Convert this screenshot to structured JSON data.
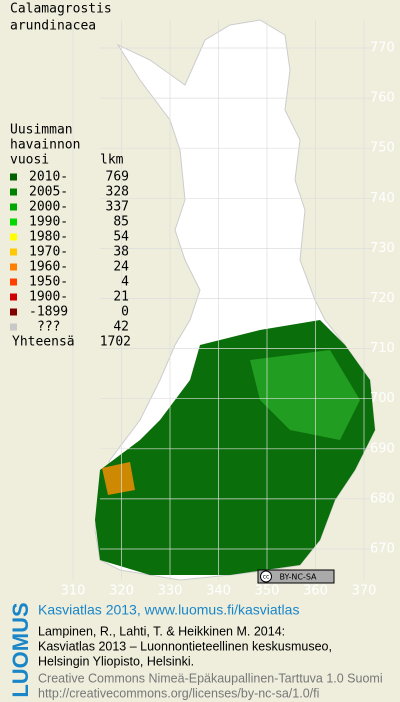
{
  "title_lines": [
    "Calamagrostis",
    "arundinacea"
  ],
  "legend": {
    "header": [
      "Uusimman",
      "havainnon",
      "vuosi"
    ],
    "count_header": "lkm",
    "rows": [
      {
        "label": "2010-",
        "count": 769,
        "color": "#005f00"
      },
      {
        "label": "2005-",
        "count": 328,
        "color": "#008000"
      },
      {
        "label": "2000-",
        "count": 337,
        "color": "#00a800"
      },
      {
        "label": "1990-",
        "count": 85,
        "color": "#00d800"
      },
      {
        "label": "1980-",
        "count": 54,
        "color": "#ffff00"
      },
      {
        "label": "1970-",
        "count": 38,
        "color": "#ffc800"
      },
      {
        "label": "1960-",
        "count": 24,
        "color": "#ff8000"
      },
      {
        "label": "1950-",
        "count": 4,
        "color": "#ff4000"
      },
      {
        "label": "1900-",
        "count": 21,
        "color": "#d00000"
      },
      {
        "label": "-1899",
        "count": 0,
        "color": "#800000"
      },
      {
        "label": "???",
        "count": 42,
        "color": "#c8c8c8"
      }
    ],
    "total_label": "Yhteensä",
    "total": 1702
  },
  "map": {
    "yticks": [
      770,
      760,
      750,
      740,
      730,
      720,
      710,
      700,
      690,
      680,
      670
    ],
    "xticks": [
      310,
      320,
      330,
      340,
      350,
      360,
      370
    ]
  },
  "badge": {
    "icon": "cc",
    "text": "BY-NC-SA"
  },
  "footer": {
    "logo": "LUOMUS",
    "link": "Kasviatlas 2013, www.luomus.fi/kasviatlas",
    "citation": [
      "Lampinen, R., Lahti, T. & Heikkinen M. 2014:",
      "Kasviatlas 2013 – Luonnontieteellinen keskusmuseo,",
      "Helsingin Yliopisto, Helsinki."
    ],
    "license": [
      "Creative Commons Nimeä-Epäkaupallinen-Tarttuva 1.0 Suomi",
      "http://creativecommons.org/licenses/by-nc-sa/1.0/fi"
    ]
  }
}
